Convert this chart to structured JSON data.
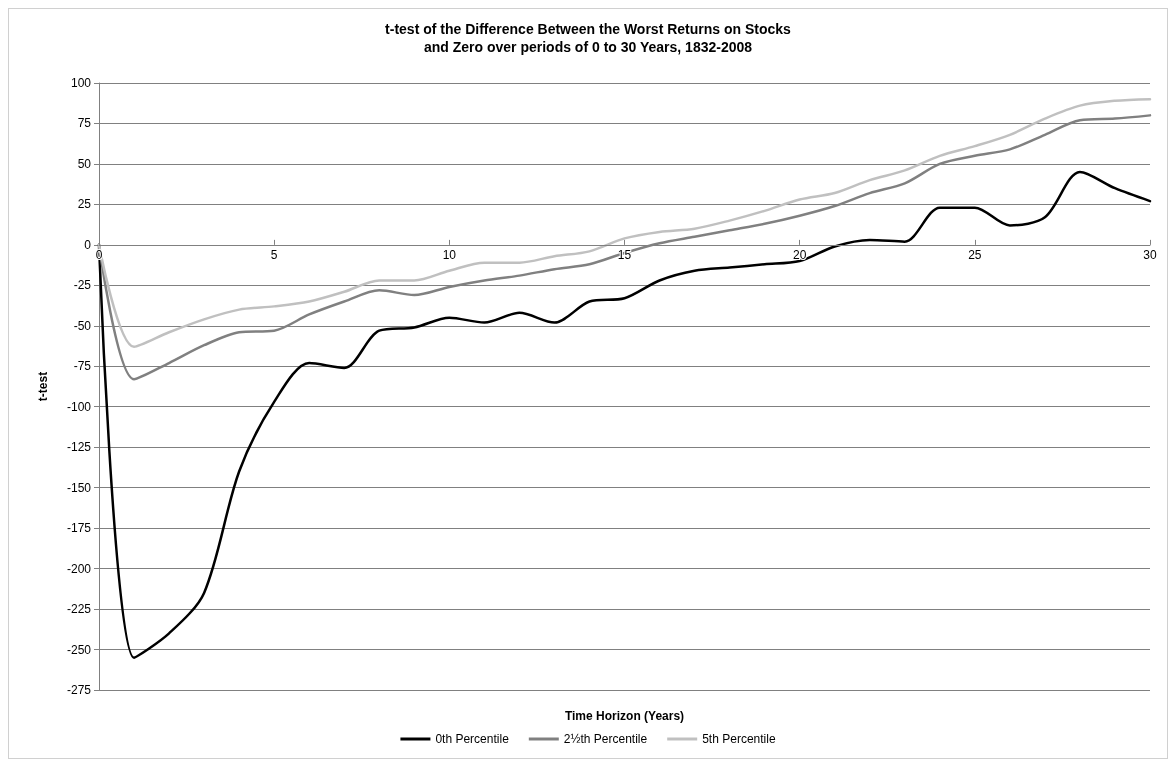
{
  "chart_data": {
    "type": "line",
    "title": "t-test of the Difference Between the Worst Returns on Stocks\nand Zero over periods of 0 to 30 Years, 1832-2008",
    "xlabel": "Time Horizon (Years)",
    "ylabel": "t-test",
    "x": [
      0,
      1,
      2,
      3,
      4,
      5,
      6,
      7,
      8,
      9,
      10,
      11,
      12,
      13,
      14,
      15,
      16,
      17,
      18,
      19,
      20,
      21,
      22,
      23,
      24,
      25,
      26,
      27,
      28,
      29,
      30
    ],
    "series": [
      {
        "name": "0th Percentile",
        "color": "#000000",
        "values": [
          0,
          -255,
          -240,
          -215,
          -140,
          -97,
          -73,
          -76,
          -53,
          -51,
          -45,
          -48,
          -42,
          -48,
          -35,
          -33,
          -22,
          -16,
          -14,
          -12,
          -10,
          -1,
          3,
          2,
          23,
          23,
          12,
          17,
          45,
          35,
          27
        ]
      },
      {
        "name": "2½th Percentile",
        "color": "#808080",
        "values": [
          0,
          -83,
          -73,
          -62,
          -54,
          -53,
          -43,
          -35,
          -28,
          -31,
          -26,
          -22,
          -19,
          -15,
          -12,
          -5,
          1,
          5,
          9,
          13,
          18,
          24,
          32,
          38,
          50,
          55,
          59,
          68,
          77,
          78,
          80
        ]
      },
      {
        "name": "5th Percentile",
        "color": "#c0c0c0",
        "values": [
          0,
          -63,
          -54,
          -46,
          -40,
          -38,
          -35,
          -29,
          -22,
          -22,
          -16,
          -11,
          -11,
          -7,
          -4,
          4,
          8,
          10,
          15,
          21,
          28,
          32,
          40,
          46,
          55,
          61,
          68,
          78,
          86,
          89,
          90
        ]
      }
    ],
    "xlim": [
      0,
      30
    ],
    "xticks": [
      0,
      5,
      10,
      15,
      20,
      25,
      30
    ],
    "ylim": [
      -275,
      100
    ],
    "yticks": [
      -275,
      -250,
      -225,
      -200,
      -175,
      -150,
      -125,
      -100,
      -75,
      -50,
      -25,
      0,
      25,
      50,
      75,
      100
    ],
    "grid": "y",
    "legend": "bottom",
    "marker": "none",
    "line_style": "solid"
  }
}
